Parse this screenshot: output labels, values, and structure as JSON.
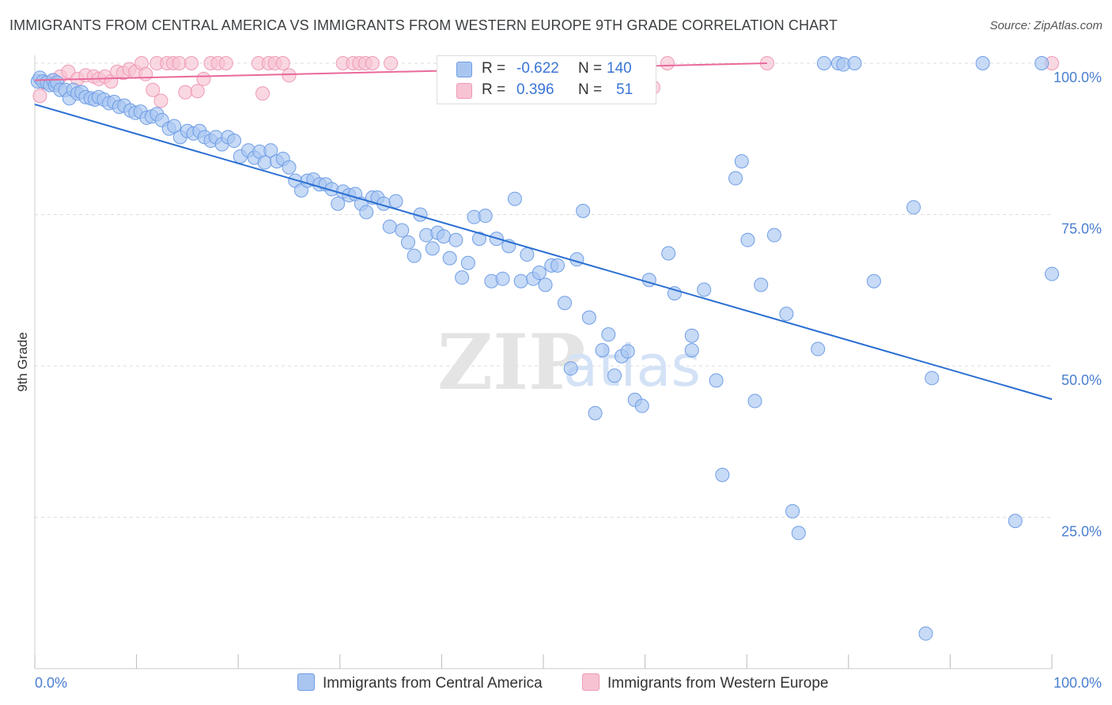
{
  "title": "IMMIGRANTS FROM CENTRAL AMERICA VS IMMIGRANTS FROM WESTERN EUROPE 9TH GRADE CORRELATION CHART",
  "source": "Source: ZipAtlas.com",
  "watermark": {
    "zip": "ZIP",
    "atlas": "atlas"
  },
  "colors": {
    "blue_fill": "#a9c6f1",
    "blue_stroke": "#6f9ee6",
    "blue_line": "#2a6fd2",
    "pink_fill": "#f7c3d3",
    "pink_stroke": "#ef9ab6",
    "pink_line": "#e9699a",
    "tick_text": "#4a7fd0",
    "grid": "#dddddd"
  },
  "legend": {
    "rows": [
      {
        "r_label": "R =",
        "r_value": "-0.622",
        "n_label": "N =",
        "n_value": "140"
      },
      {
        "r_label": "R =",
        "r_value": "0.396",
        "n_label": "N =",
        "n_value": "51"
      }
    ]
  },
  "bottom_legend": [
    "Immigrants from Central America",
    "Immigrants from Western Europe"
  ],
  "chart_data": {
    "type": "scatter",
    "title": "IMMIGRANTS FROM CENTRAL AMERICA VS IMMIGRANTS FROM WESTERN EUROPE 9TH GRADE CORRELATION CHART",
    "xlabel": "",
    "ylabel": "9th Grade",
    "xlim": [
      0,
      100
    ],
    "ylim": [
      0,
      100
    ],
    "x_tick_labels": [
      "0.0%",
      "100.0%"
    ],
    "y_ticks": [
      25,
      50,
      75,
      100
    ],
    "y_tick_labels": [
      "25.0%",
      "50.0%",
      "75.0%",
      "100.0%"
    ],
    "grid": "horizontal dashed",
    "series": [
      {
        "name": "Immigrants from Central America",
        "color": "blue",
        "trend": {
          "x0": 0,
          "y0": 93.2,
          "x1": 100,
          "y1": 44.5
        },
        "points": [
          [
            0.3,
            97.0
          ],
          [
            0.5,
            97.6
          ],
          [
            0.8,
            97.0
          ],
          [
            1.2,
            96.8
          ],
          [
            1.5,
            96.4
          ],
          [
            1.8,
            97.2
          ],
          [
            2.0,
            96.4
          ],
          [
            2.2,
            96.8
          ],
          [
            2.5,
            95.6
          ],
          [
            3.0,
            95.6
          ],
          [
            3.4,
            94.2
          ],
          [
            3.8,
            95.6
          ],
          [
            4.2,
            95.0
          ],
          [
            4.6,
            95.2
          ],
          [
            5.0,
            94.4
          ],
          [
            5.5,
            94.2
          ],
          [
            5.9,
            94.0
          ],
          [
            6.3,
            94.4
          ],
          [
            6.8,
            94.0
          ],
          [
            7.3,
            93.4
          ],
          [
            7.8,
            93.6
          ],
          [
            8.3,
            92.8
          ],
          [
            8.8,
            93.0
          ],
          [
            9.4,
            92.2
          ],
          [
            9.9,
            91.8
          ],
          [
            10.4,
            92.0
          ],
          [
            11.0,
            91.0
          ],
          [
            11.5,
            91.2
          ],
          [
            12.0,
            91.6
          ],
          [
            12.5,
            90.6
          ],
          [
            13.2,
            89.2
          ],
          [
            13.7,
            89.6
          ],
          [
            14.3,
            87.8
          ],
          [
            15.0,
            88.8
          ],
          [
            15.6,
            88.4
          ],
          [
            16.2,
            88.8
          ],
          [
            16.7,
            87.8
          ],
          [
            17.3,
            87.2
          ],
          [
            17.8,
            87.8
          ],
          [
            18.4,
            86.6
          ],
          [
            19.0,
            87.8
          ],
          [
            19.6,
            87.2
          ],
          [
            20.2,
            84.6
          ],
          [
            21.0,
            85.6
          ],
          [
            21.6,
            84.4
          ],
          [
            22.1,
            85.4
          ],
          [
            22.6,
            83.6
          ],
          [
            23.2,
            85.6
          ],
          [
            23.8,
            83.8
          ],
          [
            24.4,
            84.2
          ],
          [
            25.0,
            82.8
          ],
          [
            25.6,
            80.6
          ],
          [
            26.2,
            79.0
          ],
          [
            26.8,
            80.6
          ],
          [
            27.4,
            80.8
          ],
          [
            28.0,
            80.0
          ],
          [
            28.6,
            80.0
          ],
          [
            29.2,
            79.2
          ],
          [
            29.8,
            76.8
          ],
          [
            30.3,
            78.8
          ],
          [
            30.9,
            78.2
          ],
          [
            31.5,
            78.4
          ],
          [
            32.1,
            76.8
          ],
          [
            32.6,
            75.4
          ],
          [
            33.2,
            77.8
          ],
          [
            33.7,
            77.8
          ],
          [
            34.3,
            76.8
          ],
          [
            34.9,
            73.0
          ],
          [
            35.5,
            77.2
          ],
          [
            36.1,
            72.4
          ],
          [
            36.7,
            70.4
          ],
          [
            37.3,
            68.2
          ],
          [
            37.9,
            75.0
          ],
          [
            38.5,
            71.6
          ],
          [
            39.1,
            69.4
          ],
          [
            39.6,
            72.0
          ],
          [
            40.2,
            71.4
          ],
          [
            40.8,
            67.8
          ],
          [
            41.4,
            70.8
          ],
          [
            42.0,
            64.6
          ],
          [
            42.6,
            67.0
          ],
          [
            43.2,
            74.6
          ],
          [
            43.7,
            71.0
          ],
          [
            44.3,
            74.8
          ],
          [
            44.9,
            64.0
          ],
          [
            45.4,
            71.0
          ],
          [
            46.0,
            64.4
          ],
          [
            46.6,
            69.8
          ],
          [
            47.2,
            77.6
          ],
          [
            47.8,
            64.0
          ],
          [
            48.4,
            68.4
          ],
          [
            49.0,
            64.4
          ],
          [
            49.6,
            65.4
          ],
          [
            50.2,
            63.4
          ],
          [
            50.8,
            66.6
          ],
          [
            51.4,
            66.6
          ],
          [
            52.1,
            60.4
          ],
          [
            52.7,
            49.6
          ],
          [
            53.3,
            67.6
          ],
          [
            53.9,
            75.6
          ],
          [
            54.5,
            58.0
          ],
          [
            55.1,
            42.2
          ],
          [
            55.8,
            52.6
          ],
          [
            56.4,
            55.2
          ],
          [
            57.0,
            48.4
          ],
          [
            57.7,
            51.6
          ],
          [
            58.3,
            52.4
          ],
          [
            59.0,
            44.4
          ],
          [
            59.7,
            43.4
          ],
          [
            60.4,
            64.2
          ],
          [
            62.3,
            68.6
          ],
          [
            62.9,
            62.0
          ],
          [
            64.6,
            52.6
          ],
          [
            64.6,
            55.0
          ],
          [
            65.8,
            62.6
          ],
          [
            67.0,
            47.6
          ],
          [
            67.6,
            32.0
          ],
          [
            68.9,
            81.0
          ],
          [
            69.5,
            83.8
          ],
          [
            70.1,
            70.8
          ],
          [
            70.8,
            44.2
          ],
          [
            71.4,
            63.4
          ],
          [
            72.7,
            71.6
          ],
          [
            73.9,
            58.6
          ],
          [
            74.5,
            26.0
          ],
          [
            75.1,
            22.4
          ],
          [
            77.0,
            52.8
          ],
          [
            77.6,
            100.0
          ],
          [
            79.0,
            100.0
          ],
          [
            79.5,
            99.8
          ],
          [
            80.6,
            100.0
          ],
          [
            82.5,
            64.0
          ],
          [
            86.4,
            76.2
          ],
          [
            87.6,
            5.8
          ],
          [
            88.2,
            48.0
          ],
          [
            93.2,
            100.0
          ],
          [
            96.4,
            24.4
          ],
          [
            99.0,
            100.0
          ],
          [
            100.0,
            65.2
          ]
        ]
      },
      {
        "name": "Immigrants from Western Europe",
        "color": "pink",
        "trend": {
          "x0": 0,
          "y0": 97.2,
          "x1": 72,
          "y1": 100.0
        },
        "points": [
          [
            0.5,
            94.6
          ],
          [
            1.0,
            96.8
          ],
          [
            1.8,
            97.2
          ],
          [
            2.5,
            97.8
          ],
          [
            3.3,
            98.6
          ],
          [
            4.2,
            97.4
          ],
          [
            5.0,
            98.0
          ],
          [
            5.8,
            97.8
          ],
          [
            6.3,
            97.4
          ],
          [
            6.9,
            97.8
          ],
          [
            7.5,
            97.0
          ],
          [
            8.1,
            98.6
          ],
          [
            8.7,
            98.4
          ],
          [
            9.3,
            99.0
          ],
          [
            9.9,
            98.6
          ],
          [
            10.5,
            100.0
          ],
          [
            10.9,
            98.2
          ],
          [
            11.6,
            95.6
          ],
          [
            12.0,
            100.0
          ],
          [
            12.4,
            93.8
          ],
          [
            13.0,
            100.0
          ],
          [
            13.6,
            100.0
          ],
          [
            14.2,
            100.0
          ],
          [
            14.8,
            95.2
          ],
          [
            15.4,
            100.0
          ],
          [
            16.0,
            95.4
          ],
          [
            16.6,
            97.4
          ],
          [
            17.3,
            100.0
          ],
          [
            18.0,
            100.0
          ],
          [
            18.8,
            100.0
          ],
          [
            22.0,
            100.0
          ],
          [
            22.4,
            95.0
          ],
          [
            23.0,
            100.0
          ],
          [
            23.6,
            100.0
          ],
          [
            24.4,
            100.0
          ],
          [
            25.0,
            98.0
          ],
          [
            30.3,
            100.0
          ],
          [
            31.3,
            100.0
          ],
          [
            31.9,
            100.0
          ],
          [
            32.5,
            100.0
          ],
          [
            33.2,
            100.0
          ],
          [
            35.0,
            100.0
          ],
          [
            40.5,
            100.0
          ],
          [
            51.7,
            100.0
          ],
          [
            56.6,
            100.0
          ],
          [
            59.5,
            100.0
          ],
          [
            60.2,
            97.0
          ],
          [
            60.8,
            96.0
          ],
          [
            62.2,
            100.0
          ],
          [
            72.0,
            100.0
          ],
          [
            100.0,
            100.0
          ]
        ]
      }
    ]
  }
}
